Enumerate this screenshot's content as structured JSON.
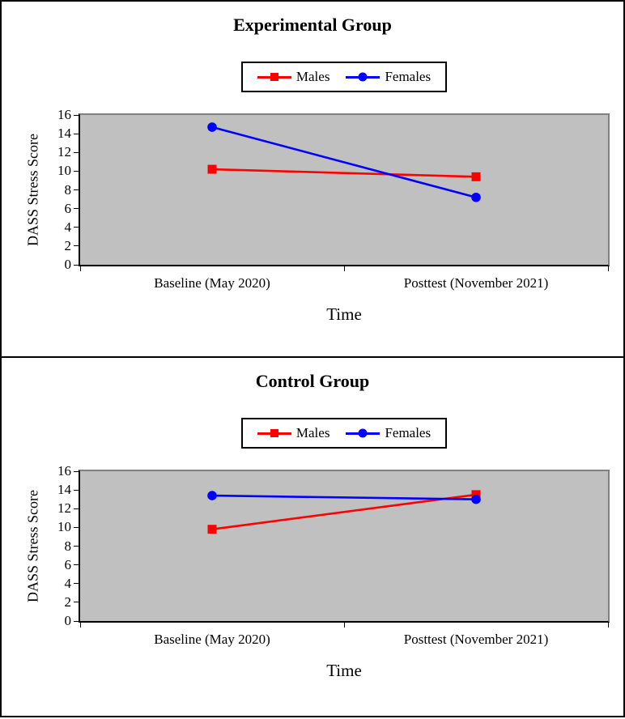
{
  "figure_name": "DASS Stress Score line charts by group and gender",
  "colors": {
    "males_series": "#FF0000",
    "females_series": "#0000FF",
    "plot_background": "#C0C0C0",
    "plot_border_gray": "#808080",
    "axis_black": "#000000"
  },
  "chart_data": [
    {
      "type": "line",
      "title": "Experimental Group",
      "categories": [
        "Baseline (May 2020)",
        "Posttest (November 2021)"
      ],
      "series": [
        {
          "name": "Males",
          "color": "#FF0000",
          "marker": "square",
          "values": [
            10.2,
            9.4
          ]
        },
        {
          "name": "Females",
          "color": "#0000FF",
          "marker": "circle",
          "values": [
            14.7,
            7.2
          ]
        }
      ],
      "xlabel": "Time",
      "ylabel": "DASS Stress Score",
      "ylim": [
        0,
        16
      ],
      "ytick_step": 2,
      "grid": false,
      "legend_position": "top-center",
      "plot_bg": "#C0C0C0"
    },
    {
      "type": "line",
      "title": "Control Group",
      "categories": [
        "Baseline (May 2020)",
        "Posttest (November 2021)"
      ],
      "series": [
        {
          "name": "Males",
          "color": "#FF0000",
          "marker": "square",
          "values": [
            9.8,
            13.5
          ]
        },
        {
          "name": "Females",
          "color": "#0000FF",
          "marker": "circle",
          "values": [
            13.4,
            13.0
          ]
        }
      ],
      "xlabel": "Time",
      "ylabel": "DASS Stress Score",
      "ylim": [
        0,
        16
      ],
      "ytick_step": 2,
      "grid": false,
      "legend_position": "top-center",
      "plot_bg": "#C0C0C0"
    }
  ]
}
